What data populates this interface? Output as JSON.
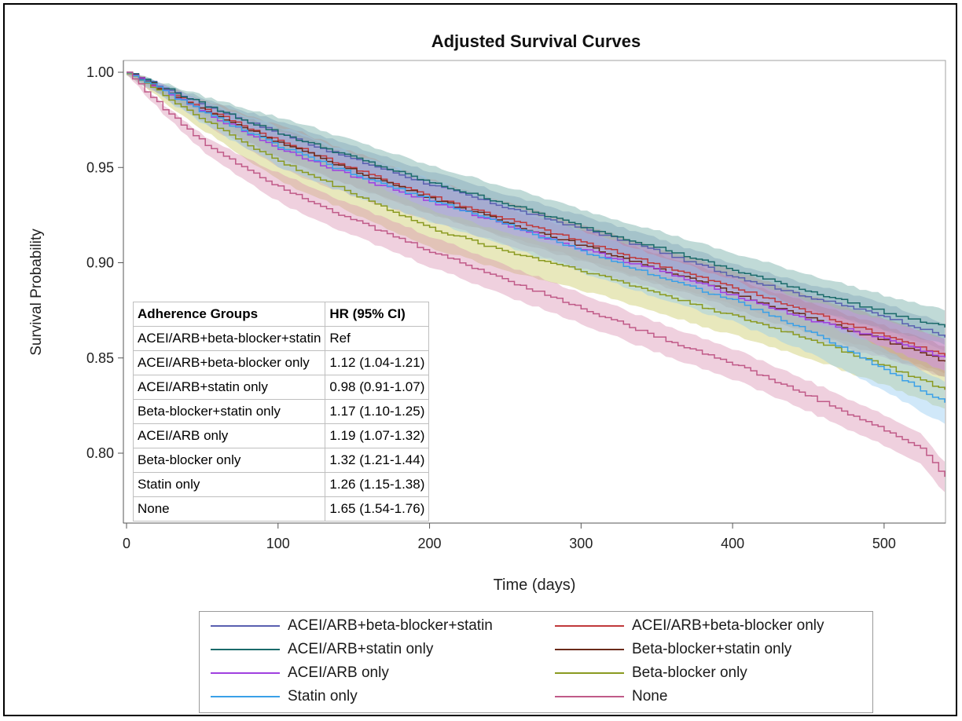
{
  "chart_data": {
    "type": "line",
    "title": "Adjusted Survival Curves",
    "xlabel": "Time (days)",
    "ylabel": "Survival Probability",
    "xlim": [
      0,
      540
    ],
    "ylim": [
      0.765,
      1.0
    ],
    "x_ticks": [
      0,
      100,
      200,
      300,
      400,
      500
    ],
    "y_ticks": [
      0.8,
      0.85,
      0.9,
      0.95,
      1.0
    ],
    "y_tick_labels": [
      "0.80",
      "0.85",
      "0.90",
      "0.95",
      "1.00"
    ],
    "grid": false,
    "legend_position": "bottom",
    "series": [
      {
        "name": "ACEI/ARB+beta-blocker+statin",
        "color": "#5a5fb0",
        "band_color": "#8ea0c8",
        "x": [
          0,
          50,
          100,
          150,
          200,
          250,
          300,
          350,
          400,
          450,
          500,
          540
        ],
        "y": [
          1.0,
          0.983,
          0.968,
          0.954,
          0.941,
          0.929,
          0.918,
          0.906,
          0.893,
          0.882,
          0.872,
          0.861
        ],
        "ci_half": 0.007
      },
      {
        "name": "ACEI/ARB+beta-blocker only",
        "color": "#c0393b",
        "band_color": "#e09090",
        "x": [
          0,
          50,
          100,
          150,
          200,
          250,
          300,
          350,
          400,
          450,
          500,
          540
        ],
        "y": [
          1.0,
          0.981,
          0.964,
          0.949,
          0.935,
          0.923,
          0.911,
          0.899,
          0.887,
          0.874,
          0.862,
          0.851
        ],
        "ci_half": 0.009
      },
      {
        "name": "ACEI/ARB+statin only",
        "color": "#1a6a6a",
        "band_color": "#6aa8a0",
        "x": [
          0,
          50,
          100,
          150,
          200,
          250,
          300,
          350,
          400,
          450,
          500,
          540
        ],
        "y": [
          1.0,
          0.983,
          0.968,
          0.955,
          0.942,
          0.931,
          0.919,
          0.908,
          0.896,
          0.885,
          0.874,
          0.866
        ],
        "ci_half": 0.009
      },
      {
        "name": "Beta-blocker+statin only",
        "color": "#6a2a1a",
        "band_color": "#a88070",
        "x": [
          0,
          50,
          100,
          150,
          200,
          250,
          300,
          350,
          400,
          450,
          500,
          540
        ],
        "y": [
          1.0,
          0.98,
          0.963,
          0.948,
          0.934,
          0.921,
          0.909,
          0.897,
          0.884,
          0.871,
          0.859,
          0.848
        ],
        "ci_half": 0.008
      },
      {
        "name": "ACEI/ARB only",
        "color": "#a040e0",
        "band_color": "#c890e8",
        "x": [
          0,
          50,
          100,
          150,
          200,
          250,
          300,
          350,
          400,
          450,
          500,
          540
        ],
        "y": [
          1.0,
          0.979,
          0.96,
          0.945,
          0.932,
          0.92,
          0.907,
          0.896,
          0.883,
          0.87,
          0.86,
          0.85
        ],
        "ci_half": 0.01
      },
      {
        "name": "Beta-blocker only",
        "color": "#8a9a20",
        "band_color": "#c8c860",
        "x": [
          0,
          50,
          100,
          150,
          200,
          250,
          300,
          350,
          400,
          450,
          500,
          540
        ],
        "y": [
          1.0,
          0.975,
          0.953,
          0.936,
          0.918,
          0.906,
          0.896,
          0.884,
          0.872,
          0.86,
          0.846,
          0.833
        ],
        "ci_half": 0.01
      },
      {
        "name": "Statin only",
        "color": "#3aa0e8",
        "band_color": "#90c8f0",
        "x": [
          0,
          50,
          100,
          150,
          200,
          250,
          300,
          350,
          400,
          450,
          500,
          540
        ],
        "y": [
          1.0,
          0.979,
          0.961,
          0.946,
          0.933,
          0.92,
          0.906,
          0.893,
          0.88,
          0.864,
          0.844,
          0.826
        ],
        "ci_half": 0.011
      },
      {
        "name": "None",
        "color": "#c05a88",
        "band_color": "#d890b0",
        "x": [
          0,
          25,
          50,
          75,
          100,
          150,
          200,
          250,
          300,
          350,
          400,
          450,
          500,
          525,
          540
        ],
        "y": [
          1.0,
          0.98,
          0.963,
          0.951,
          0.94,
          0.922,
          0.906,
          0.891,
          0.876,
          0.861,
          0.847,
          0.83,
          0.812,
          0.802,
          0.787
        ],
        "ci_half": 0.008
      }
    ],
    "annotation_table": {
      "headers": [
        "Adherence Groups",
        "HR (95% CI)"
      ],
      "rows": [
        [
          "ACEI/ARB+beta-blocker+statin",
          "Ref"
        ],
        [
          "ACEI/ARB+beta-blocker only",
          "1.12 (1.04-1.21)"
        ],
        [
          "ACEI/ARB+statin only",
          "0.98 (0.91-1.07)"
        ],
        [
          "Beta-blocker+statin only",
          "1.17 (1.10-1.25)"
        ],
        [
          "ACEI/ARB only",
          "1.19 (1.07-1.32)"
        ],
        [
          "Beta-blocker only",
          "1.32 (1.21-1.44)"
        ],
        [
          "Statin only",
          "1.26 (1.15-1.38)"
        ],
        [
          "None",
          "1.65 (1.54-1.76)"
        ]
      ]
    }
  }
}
